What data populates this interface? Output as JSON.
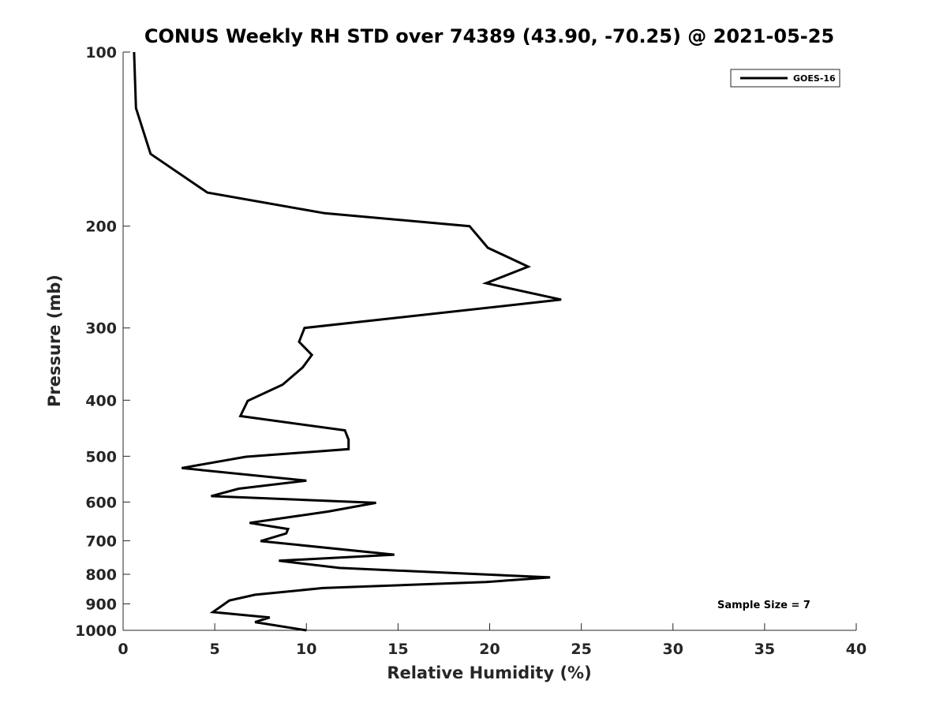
{
  "chart_data": {
    "type": "line",
    "title": "CONUS Weekly RH STD over 74389 (43.90, -70.25) @ 2021-05-25",
    "xlabel": "Relative Humidity (%)",
    "ylabel": "Pressure (mb)",
    "xlim": [
      0,
      40
    ],
    "ylim": [
      1000,
      100
    ],
    "y_scale": "log",
    "y_reversed": true,
    "grid": false,
    "x_ticks": [
      0,
      5,
      10,
      15,
      20,
      25,
      30,
      35,
      40
    ],
    "y_ticks": [
      100,
      200,
      300,
      400,
      500,
      600,
      700,
      800,
      900,
      1000
    ],
    "legend_position": "top-right",
    "annotation": "Sample Size = 7",
    "series": [
      {
        "name": "GOES-16",
        "color": "#000000",
        "points": [
          [
            0.6,
            100
          ],
          [
            0.7,
            125
          ],
          [
            1.5,
            150
          ],
          [
            4.6,
            175
          ],
          [
            11.0,
            190
          ],
          [
            18.9,
            200
          ],
          [
            19.9,
            218
          ],
          [
            22.1,
            235
          ],
          [
            19.8,
            251
          ],
          [
            23.9,
            268
          ],
          [
            9.9,
            300
          ],
          [
            9.6,
            317
          ],
          [
            10.3,
            334
          ],
          [
            9.8,
            351
          ],
          [
            8.7,
            376
          ],
          [
            6.8,
            401
          ],
          [
            6.4,
            426
          ],
          [
            12.1,
            451
          ],
          [
            12.3,
            468
          ],
          [
            12.3,
            486
          ],
          [
            6.7,
            501
          ],
          [
            3.2,
            524
          ],
          [
            10.0,
            551
          ],
          [
            6.3,
            569
          ],
          [
            4.8,
            586
          ],
          [
            13.8,
            602
          ],
          [
            11.2,
            623
          ],
          [
            6.9,
            652
          ],
          [
            9.0,
            668
          ],
          [
            8.9,
            680
          ],
          [
            7.5,
            701
          ],
          [
            14.8,
            740
          ],
          [
            8.5,
            758
          ],
          [
            11.8,
            780
          ],
          [
            23.3,
            810
          ],
          [
            19.8,
            825
          ],
          [
            10.9,
            845
          ],
          [
            7.2,
            868
          ],
          [
            5.8,
            888
          ],
          [
            4.9,
            930
          ],
          [
            8.0,
            950
          ],
          [
            7.2,
            968
          ],
          [
            10.0,
            1000
          ]
        ]
      }
    ]
  }
}
